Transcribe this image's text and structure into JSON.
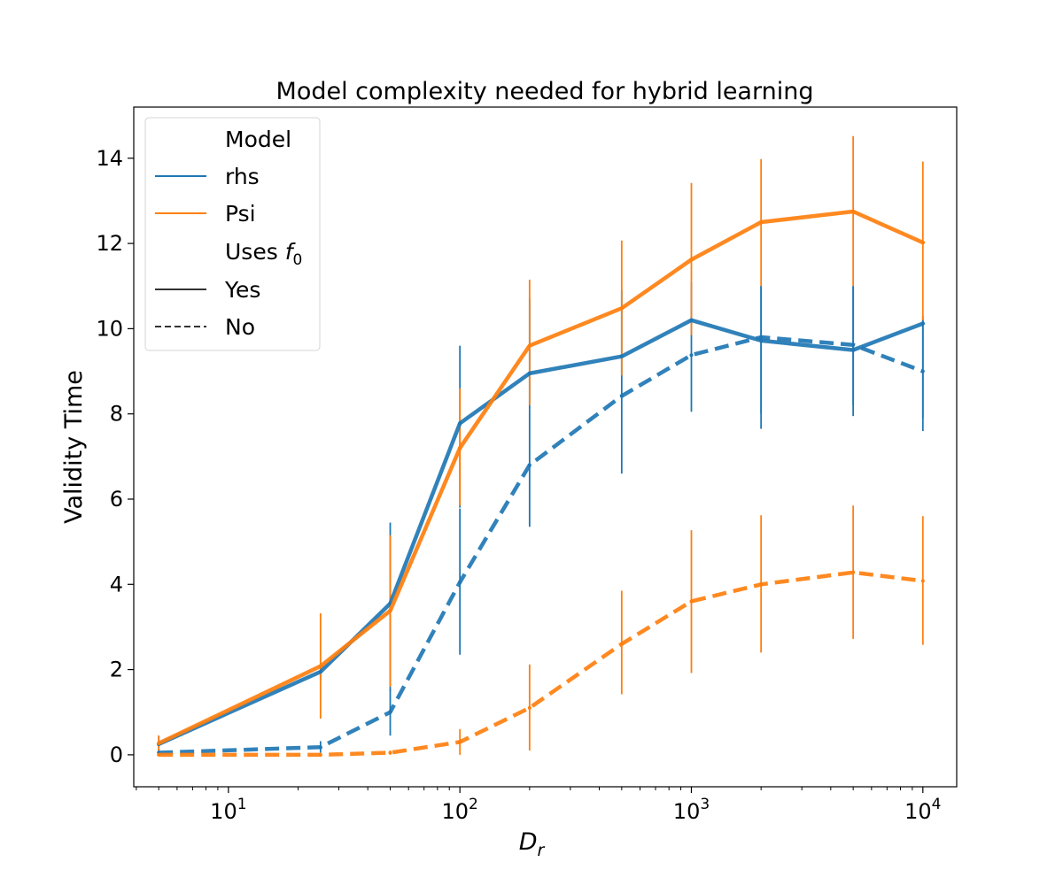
{
  "chart_data": {
    "type": "line",
    "title": "Model complexity needed for hybrid learning",
    "xlabel_base": "D",
    "xlabel_sub": "r",
    "ylabel": "Validity Time",
    "xscale": "log",
    "xlim": [
      3.9,
      14000
    ],
    "ylim": [
      -0.75,
      15.2
    ],
    "yticks": [
      0,
      2,
      4,
      6,
      8,
      10,
      12,
      14
    ],
    "xticks": [
      {
        "value": 10,
        "base": "10",
        "exp": "1"
      },
      {
        "value": 100,
        "base": "10",
        "exp": "2"
      },
      {
        "value": 1000,
        "base": "10",
        "exp": "3"
      },
      {
        "value": 10000,
        "base": "10",
        "exp": "4"
      }
    ],
    "x": [
      5,
      25,
      50,
      100,
      200,
      500,
      1000,
      2000,
      5000,
      10000
    ],
    "series": [
      {
        "model": "rhs",
        "uses_f0": "Yes",
        "color": "#1f77b4",
        "dash": "solid",
        "values": [
          0.25,
          1.95,
          3.55,
          7.78,
          8.95,
          9.35,
          10.2,
          9.72,
          9.5,
          10.12
        ],
        "err_low": [
          0.05,
          1.75,
          1.5,
          5.8,
          8.1,
          8.9,
          9.85,
          7.65,
          7.95,
          7.6
        ],
        "err_high": [
          0.45,
          2.15,
          5.45,
          9.6,
          10.7,
          10.9,
          11.1,
          11.0,
          11.0,
          10.3
        ]
      },
      {
        "model": "Psi",
        "uses_f0": "Yes",
        "color": "#ff7f0e",
        "dash": "solid",
        "values": [
          0.27,
          2.08,
          3.38,
          7.2,
          9.6,
          10.48,
          11.62,
          12.5,
          12.75,
          12.02
        ],
        "err_low": [
          0.05,
          0.85,
          1.6,
          5.85,
          8.2,
          8.9,
          9.85,
          11.0,
          11.0,
          10.1
        ],
        "err_high": [
          0.45,
          3.32,
          5.15,
          8.6,
          11.15,
          12.07,
          13.42,
          13.98,
          14.52,
          13.92
        ]
      },
      {
        "model": "rhs",
        "uses_f0": "No",
        "color": "#1f77b4",
        "dash": "dashed",
        "values": [
          0.05,
          0.18,
          1.0,
          4.05,
          6.8,
          8.42,
          9.38,
          9.8,
          9.62,
          9.0
        ],
        "err_low": [
          0.0,
          0.05,
          0.45,
          2.35,
          5.35,
          6.6,
          8.05,
          8.0,
          8.2,
          7.9
        ],
        "err_high": [
          0.1,
          0.32,
          1.55,
          5.78,
          8.1,
          8.9,
          9.85,
          11.0,
          11.0,
          10.2
        ]
      },
      {
        "model": "Psi",
        "uses_f0": "No",
        "color": "#ff7f0e",
        "dash": "dashed",
        "values": [
          0.0,
          0.0,
          0.05,
          0.3,
          1.1,
          2.6,
          3.6,
          4.0,
          4.28,
          4.08
        ],
        "err_low": [
          0.0,
          0.0,
          0.0,
          0.0,
          0.1,
          1.42,
          1.92,
          2.4,
          2.72,
          2.58
        ],
        "err_high": [
          0.0,
          0.0,
          0.1,
          0.6,
          2.12,
          3.85,
          5.27,
          5.62,
          5.85,
          5.6
        ]
      }
    ],
    "legend": {
      "position": "upper-left",
      "header_model": "Model",
      "model_entries": [
        {
          "label": "rhs",
          "color": "#1f77b4"
        },
        {
          "label": "Psi",
          "color": "#ff7f0e"
        }
      ],
      "header_f0_text": "Uses ",
      "header_f0_symbol": "f",
      "header_f0_sub": "0",
      "style_entries": [
        {
          "label": "Yes",
          "dash": "solid"
        },
        {
          "label": "No",
          "dash": "dashed"
        }
      ]
    }
  }
}
